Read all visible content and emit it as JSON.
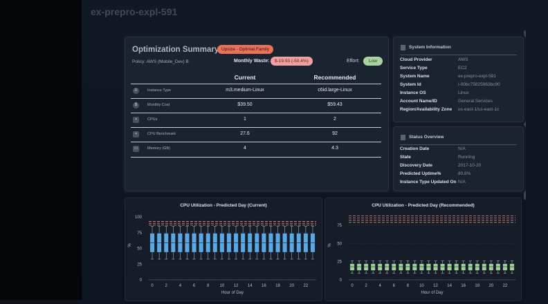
{
  "page_title": "ex-prepro-expl-591",
  "optimization": {
    "title": "Optimization Summary",
    "upsize_badge": "Upsize - Optimal Family",
    "policy": "Policy: AWS (Mobile_Dev) B",
    "monthly_waste_label": "Monthly Waste:",
    "monthly_waste_value": "$-19.93 (-50.4%)",
    "effort_label": "Effort:",
    "effort_value": "Low",
    "current_header": "Current",
    "recommended_header": "Recommended",
    "rows": [
      {
        "icon": "instance-type-icon",
        "label": "Instance Type",
        "current": "m3.medium-Linux",
        "recommended": "c6id.large-Linux"
      },
      {
        "icon": "monthly-cost-icon",
        "label": "Monthly Cost",
        "current": "$39.50",
        "recommended": "$59.43"
      },
      {
        "icon": "cpu-icon",
        "label": "CPUs",
        "current": "1",
        "recommended": "2"
      },
      {
        "icon": "cpu-benchmark-icon",
        "label": "CPU Benchmark",
        "current": "27.6",
        "recommended": "92"
      },
      {
        "icon": "memory-icon",
        "label": "Memory (GB)",
        "current": "4",
        "recommended": "4.3"
      }
    ]
  },
  "system_info": {
    "title": "System Information",
    "items": [
      {
        "k": "Cloud Provider",
        "v": "AWS"
      },
      {
        "k": "Service Type",
        "v": "EC2"
      },
      {
        "k": "System Name",
        "v": "ex-prepro-expl-591"
      },
      {
        "k": "System Id",
        "v": "i-00bc75825963bc90"
      },
      {
        "k": "Instance OS",
        "v": "Linux"
      },
      {
        "k": "Account Name/ID",
        "v": "General Services"
      },
      {
        "k": "Region/Availability Zone",
        "v": "us-east-1/us-east-1c"
      }
    ]
  },
  "status_overview": {
    "title": "Status Overview",
    "items": [
      {
        "k": "Creation Date",
        "v": "N/A"
      },
      {
        "k": "State",
        "v": "Running"
      },
      {
        "k": "Discovery Date",
        "v": "2017-10-20"
      },
      {
        "k": "Predicted Uptime%",
        "v": "80.8%"
      },
      {
        "k": "Instance Type Updated On",
        "v": "N/A"
      }
    ]
  },
  "chart_data": [
    {
      "type": "boxplot",
      "title": "CPU Utilization - Predicted Day (Current)",
      "xlabel": "Hour of Day",
      "ylabel": "%",
      "x": [
        0,
        1,
        2,
        3,
        4,
        5,
        6,
        7,
        8,
        9,
        10,
        11,
        12,
        13,
        14,
        15,
        16,
        17,
        18,
        19,
        20,
        21,
        22,
        23
      ],
      "x_ticks": [
        0,
        2,
        4,
        6,
        8,
        10,
        12,
        14,
        16,
        18,
        20,
        22
      ],
      "y_ticks": [
        0,
        25,
        50,
        75,
        100
      ],
      "ylim": [
        0,
        110
      ],
      "box_color": "#5aa9e6",
      "q1": [
        44,
        44,
        44,
        44,
        44,
        44,
        44,
        44,
        44,
        44,
        44,
        44,
        44,
        44,
        44,
        44,
        44,
        44,
        44,
        44,
        44,
        44,
        44,
        44
      ],
      "median": [
        59,
        59,
        59,
        59,
        59,
        59,
        59,
        59,
        59,
        59,
        59,
        59,
        59,
        59,
        59,
        59,
        59,
        59,
        59,
        59,
        59,
        59,
        59,
        59
      ],
      "q3": [
        74,
        74,
        74,
        74,
        74,
        74,
        74,
        74,
        74,
        74,
        74,
        74,
        74,
        74,
        74,
        74,
        74,
        74,
        74,
        74,
        74,
        74,
        74,
        74
      ],
      "whisker_low": [
        33,
        33,
        33,
        33,
        33,
        33,
        33,
        33,
        33,
        33,
        33,
        33,
        33,
        33,
        33,
        33,
        33,
        33,
        33,
        33,
        33,
        33,
        33,
        33
      ],
      "whisker_high": [
        85,
        85,
        85,
        85,
        85,
        85,
        85,
        85,
        85,
        85,
        85,
        85,
        85,
        85,
        85,
        85,
        85,
        85,
        85,
        85,
        85,
        85,
        85,
        85
      ],
      "ref_lines": [
        {
          "y": 93,
          "color": "#e58a8a"
        },
        {
          "y": 90,
          "color": "#e58a8a"
        },
        {
          "y": 87,
          "color": "#e2a86a"
        }
      ]
    },
    {
      "type": "boxplot",
      "title": "CPU Utilization - Predicted Day (Recommended)",
      "xlabel": "Hour of Day",
      "ylabel": "%",
      "x": [
        0,
        1,
        2,
        3,
        4,
        5,
        6,
        7,
        8,
        9,
        10,
        11,
        12,
        13,
        14,
        15,
        16,
        17,
        18,
        19,
        20,
        21,
        22,
        23
      ],
      "x_ticks": [
        0,
        2,
        4,
        6,
        8,
        10,
        12,
        14,
        16,
        18,
        20,
        22
      ],
      "y_ticks": [
        0,
        25,
        50,
        75
      ],
      "ylim": [
        0,
        95
      ],
      "box_color": "#9ed493",
      "q1": [
        13,
        13,
        13,
        13,
        13,
        13,
        13,
        13,
        13,
        13,
        13,
        13,
        13,
        13,
        13,
        13,
        13,
        13,
        13,
        13,
        13,
        13,
        13,
        13
      ],
      "median": [
        18,
        18,
        18,
        18,
        18,
        18,
        18,
        18,
        18,
        18,
        18,
        18,
        18,
        18,
        18,
        18,
        18,
        18,
        18,
        18,
        18,
        18,
        18,
        18
      ],
      "q3": [
        22,
        22,
        22,
        22,
        22,
        22,
        22,
        22,
        22,
        22,
        22,
        22,
        22,
        22,
        22,
        22,
        22,
        22,
        22,
        22,
        22,
        22,
        22,
        22
      ],
      "whisker_low": [
        9,
        9,
        9,
        9,
        9,
        9,
        9,
        9,
        9,
        9,
        9,
        9,
        9,
        9,
        9,
        9,
        9,
        9,
        9,
        9,
        9,
        9,
        9,
        9
      ],
      "whisker_high": [
        26,
        26,
        26,
        26,
        26,
        26,
        26,
        26,
        26,
        26,
        26,
        26,
        26,
        26,
        26,
        26,
        26,
        26,
        26,
        26,
        26,
        26,
        26,
        26
      ],
      "ref_lines": [
        {
          "y": 88,
          "color": "#e58a8a"
        },
        {
          "y": 85,
          "color": "#e58a8a"
        },
        {
          "y": 82,
          "color": "#e58a8a"
        },
        {
          "y": 79,
          "color": "#e2a86a"
        }
      ]
    }
  ]
}
